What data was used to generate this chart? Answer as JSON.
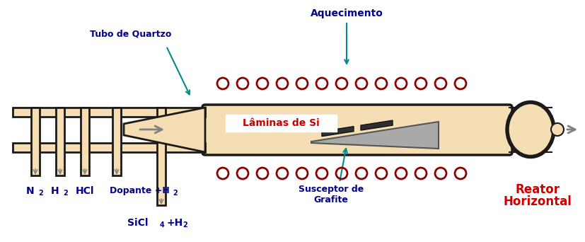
{
  "bg_color": "#ffffff",
  "tube_fill": "#F5DEB3",
  "tube_edge": "#1a1a1a",
  "tube_edge_thick": 2.5,
  "heater_color": "#8B0000",
  "susceptor_fill": "#A9A9A9",
  "susceptor_edge": "#555555",
  "wafer_color": "#2F2F2F",
  "label_color_blue": "#00008B",
  "label_color_red": "#CC0000",
  "label_color_teal": "#008B8B",
  "arrow_color": "#808080",
  "title": "Aquecimento",
  "label_tubo": "Tubo de Quartzo",
  "label_laminas": "Lâminas de Si",
  "label_susceptor": "Susceptor de\nGrafite",
  "label_reator": "Reator\nHorizontal",
  "figsize": [
    8.28,
    3.42
  ],
  "dpi": 100
}
